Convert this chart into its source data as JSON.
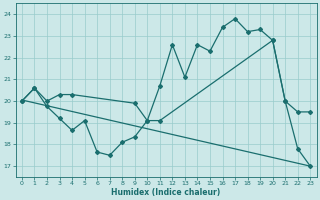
{
  "xlabel": "Humidex (Indice chaleur)",
  "bg_color": "#cce8e8",
  "grid_color": "#99cccc",
  "line_color": "#1a6e6e",
  "xlim": [
    -0.5,
    23.5
  ],
  "ylim": [
    16.5,
    24.5
  ],
  "yticks": [
    17,
    18,
    19,
    20,
    21,
    22,
    23,
    24
  ],
  "xticks": [
    0,
    1,
    2,
    3,
    4,
    5,
    6,
    7,
    8,
    9,
    10,
    11,
    12,
    13,
    14,
    15,
    16,
    17,
    18,
    19,
    20,
    21,
    22,
    23
  ],
  "upper_x": [
    0,
    1,
    2,
    3,
    4,
    9,
    10,
    11,
    12,
    13,
    14,
    15,
    16,
    17,
    18,
    19,
    20,
    21,
    22,
    23
  ],
  "upper_y": [
    20.0,
    20.6,
    20.0,
    20.3,
    20.3,
    19.9,
    19.1,
    20.7,
    22.6,
    21.1,
    22.6,
    22.3,
    23.4,
    23.8,
    23.2,
    23.3,
    22.8,
    20.0,
    19.5,
    19.5
  ],
  "lower_x": [
    0,
    1,
    2,
    3,
    4,
    5,
    6,
    7,
    8,
    9,
    10,
    11,
    20,
    21,
    22,
    23
  ],
  "lower_y": [
    20.0,
    20.6,
    19.75,
    19.2,
    18.65,
    19.1,
    17.65,
    17.5,
    18.1,
    18.35,
    19.1,
    19.1,
    22.8,
    20.0,
    17.8,
    17.0
  ],
  "trend_x": [
    0,
    23
  ],
  "trend_y": [
    20.05,
    17.0
  ]
}
